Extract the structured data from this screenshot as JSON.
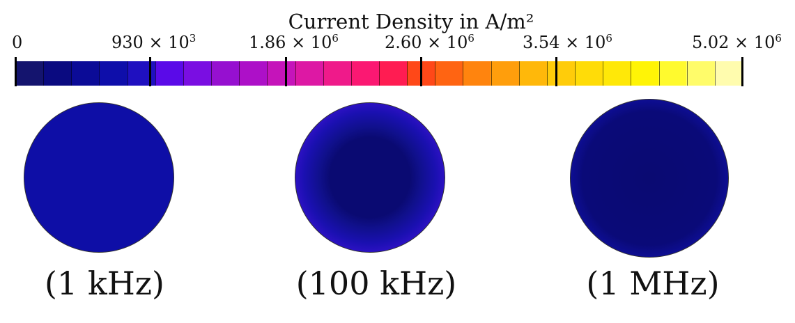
{
  "colorbar": {
    "title": "Current Density in A/m²",
    "tick_labels": [
      {
        "mantissa": "0",
        "exponent": ""
      },
      {
        "mantissa": "930 × 10",
        "exponent": "3"
      },
      {
        "mantissa": "1.86 × 10",
        "exponent": "6"
      },
      {
        "mantissa": "2.60 × 10",
        "exponent": "6"
      },
      {
        "mantissa": "3.54 × 10",
        "exponent": "6"
      },
      {
        "mantissa": "5.02 × 10",
        "exponent": "6"
      }
    ],
    "colors": [
      "#14146e",
      "#0a0a80",
      "#0b0b97",
      "#0e0eaa",
      "#1f10c0",
      "#5a0ae8",
      "#7a0ee2",
      "#9610d0",
      "#ad10c8",
      "#c514ba",
      "#dd18a4",
      "#ef1a8a",
      "#fb1872",
      "#ff1c52",
      "#ff4818",
      "#ff6412",
      "#ff840e",
      "#ff9e0c",
      "#ffb80a",
      "#ffcc0a",
      "#ffdc08",
      "#ffe808",
      "#fff406",
      "#fffa2e",
      "#fffc6a",
      "#fffcae"
    ]
  },
  "panels": [
    {
      "label": "(1 kHz)",
      "fill": "#0e0ea6"
    },
    {
      "label": "(100 kHz)",
      "fill": "radial-gradient(circle, #0a0a72 0%, #0a0a72 38%, #10108c 48%, #1a10b0 62%, #3a12d2 78%, #6a10e6 90%, #9012d6 100%)"
    },
    {
      "label": "(1 MHz)",
      "fill": "radial-gradient(circle, #0a0a72 0%, #0a0a78 60%, #0e0e96 72%, #2a10c4 80%, #8a10cc 85%, #e0186a 88.5%, #ff7010 92%, #ffb80a 94.5%, #fff020 97%, #fffa60 99%, #ffffa8 100%)"
    }
  ]
}
